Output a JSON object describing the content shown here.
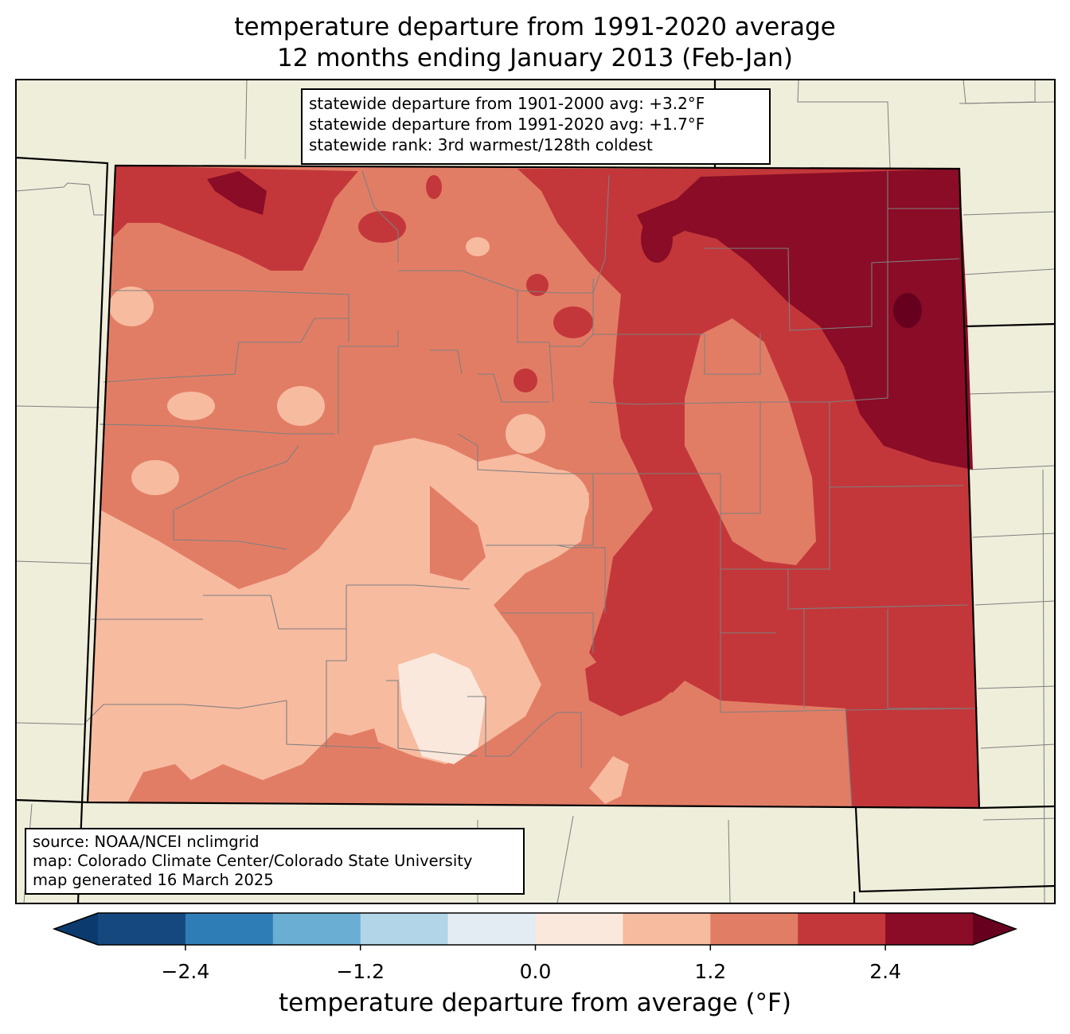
{
  "title_line1": "temperature departure from 1991-2020 average",
  "title_line2": "12 months ending January 2013 (Feb-Jan)",
  "stats": {
    "line1": "statewide departure from 1901-2000 avg: +3.2°F",
    "line2": "statewide departure from 1991-2020 avg: +1.7°F",
    "line3": "statewide rank: 3rd warmest/128th coldest"
  },
  "credits": {
    "line1": "source: NOAA/NCEI nclimgrid",
    "line2": "map: Colorado Climate Center/Colorado State University",
    "line3": "map generated 16 March 2025"
  },
  "colorbar": {
    "title": "temperature departure from average (°F)",
    "ticks": [
      "−2.4",
      "−1.2",
      "0.0",
      "1.2",
      "2.4"
    ],
    "tick_values": [
      -2.4,
      -1.2,
      0.0,
      1.2,
      2.4
    ],
    "levels": [
      -3.0,
      -2.4,
      -1.8,
      -1.2,
      -0.6,
      0.0,
      0.6,
      1.2,
      1.8,
      2.4,
      3.0
    ],
    "colors": [
      "#0b3b6e",
      "#15487f",
      "#2f7db7",
      "#6aaed3",
      "#b2d5e7",
      "#e4ecf3",
      "#fae8dc",
      "#f7bba0",
      "#e27d65",
      "#c3373a",
      "#8a0c26",
      "#67001f"
    ],
    "extend": "both"
  },
  "map_colors": {
    "land_background": "#efeedb",
    "county_lines": "#7f7f7f",
    "state_lines": "#000000"
  }
}
